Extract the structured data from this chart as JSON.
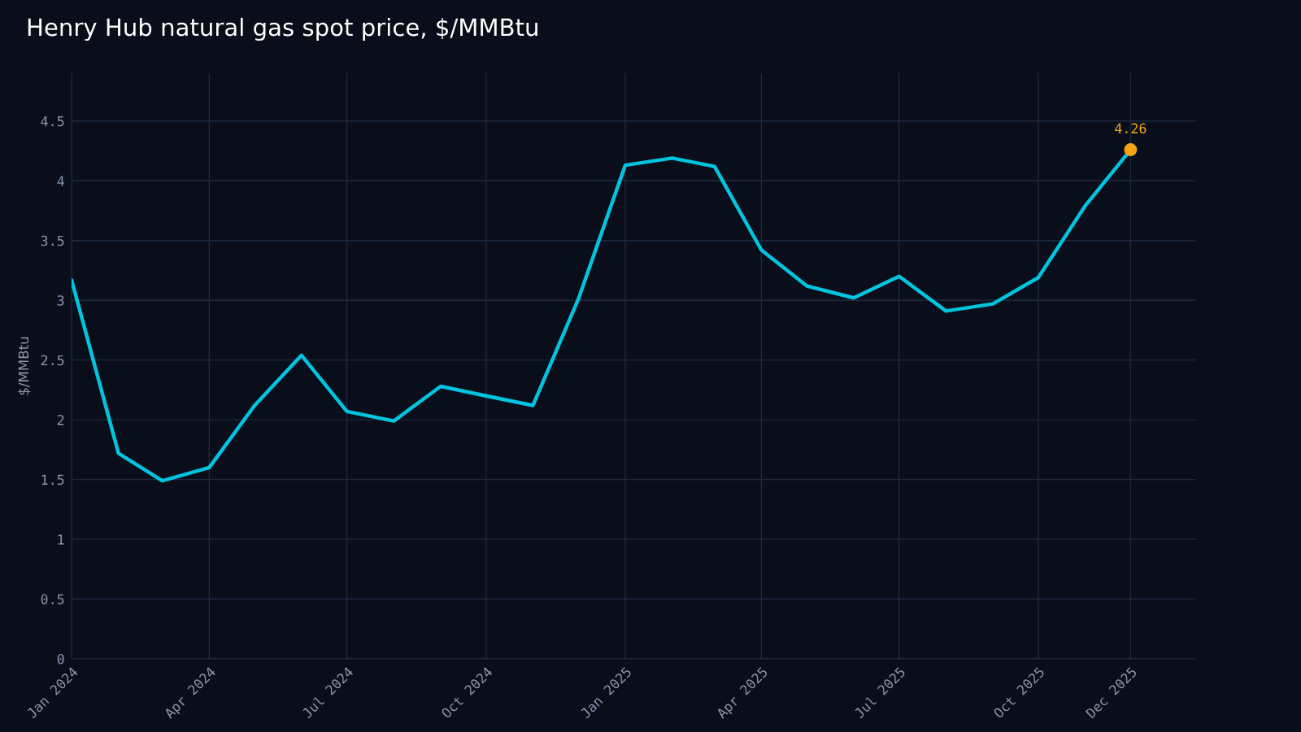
{
  "chart_data": {
    "type": "line",
    "title": "Henry Hub natural gas spot price, $/MMBtu",
    "ylabel": "$/MMBtu",
    "x": [
      "2024-01-01",
      "2024-02-01",
      "2024-03-01",
      "2024-04-01",
      "2024-05-01",
      "2024-06-01",
      "2024-07-01",
      "2024-08-01",
      "2024-09-01",
      "2024-10-01",
      "2024-11-01",
      "2024-12-01",
      "2025-01-01",
      "2025-02-01",
      "2025-03-01",
      "2025-04-01",
      "2025-05-01",
      "2025-06-01",
      "2025-07-01",
      "2025-08-01",
      "2025-09-01",
      "2025-10-01",
      "2025-11-01",
      "2025-12-01"
    ],
    "series": [
      {
        "color": "#00c4e0",
        "values": [
          3.17,
          1.72,
          1.49,
          1.6,
          2.12,
          2.54,
          2.07,
          1.99,
          2.28,
          2.2,
          2.12,
          3.01,
          4.13,
          4.19,
          4.12,
          3.42,
          3.12,
          3.02,
          3.2,
          2.91,
          2.97,
          3.19,
          3.79,
          4.26
        ]
      },
      {
        "type": "scatter",
        "color": "#f5a511",
        "x": [
          "2025-12-01"
        ],
        "values": [
          4.26
        ]
      }
    ],
    "annotations": [
      {
        "text": "4.26",
        "x": "2025-12-01",
        "y": 4.26
      }
    ],
    "xlim": [
      "2024-01-01",
      "2026-01-13"
    ],
    "xticks": [
      {
        "value": "2024-01-01",
        "label": "Jan 2024"
      },
      {
        "value": "2024-04-01",
        "label": "Apr 2024"
      },
      {
        "value": "2024-07-01",
        "label": "Jul 2024"
      },
      {
        "value": "2024-10-01",
        "label": "Oct 2024"
      },
      {
        "value": "2025-01-01",
        "label": "Jan 2025"
      },
      {
        "value": "2025-04-01",
        "label": "Apr 2025"
      },
      {
        "value": "2025-07-01",
        "label": "Jul 2025"
      },
      {
        "value": "2025-10-01",
        "label": "Oct 2025"
      },
      {
        "value": "2025-12-01",
        "label": "Dec 2025"
      }
    ],
    "ylim": [
      0,
      4.9
    ],
    "yticks": [
      0,
      0.5,
      1,
      1.5,
      2,
      2.5,
      3,
      3.5,
      4,
      4.5
    ],
    "grid": true
  }
}
